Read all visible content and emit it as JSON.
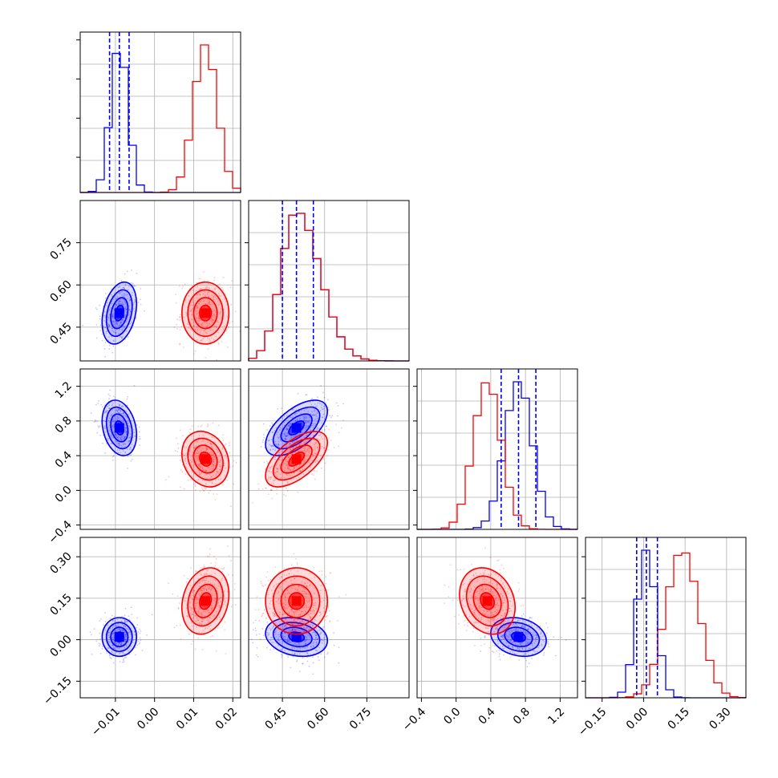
{
  "chart_data": {
    "type": "scatter",
    "plot_kind": "corner plot (pairwise 2D density contours with 1D marginal histograms)",
    "series": [
      {
        "color": "#0000ff",
        "means": [
          -0.009,
          0.5,
          0.72,
          0.01
        ],
        "stds": [
          0.0022,
          0.055,
          0.16,
          0.035
        ],
        "quantiles_16_50_84": [
          [
            -0.0115,
            -0.009,
            -0.0065
          ],
          [
            0.45,
            0.5,
            0.56
          ],
          [
            0.52,
            0.72,
            0.92
          ],
          [
            -0.025,
            0.01,
            0.05
          ]
        ]
      },
      {
        "color": "#ff0000",
        "means": [
          0.013,
          0.5,
          0.36,
          0.14
        ],
        "stds": [
          0.003,
          0.055,
          0.16,
          0.06
        ]
      }
    ],
    "correlations": {
      "blue": {
        "1-0": 0.3,
        "2-0": -0.25,
        "2-1": 0.6,
        "3-0": 0.0,
        "3-1": -0.2,
        "3-2": -0.2
      },
      "red": {
        "1-0": 0.0,
        "2-0": -0.2,
        "2-1": 0.6,
        "3-0": 0.2,
        "3-1": 0.0,
        "3-2": -0.2
      }
    },
    "axes": [
      {
        "range": [
          -0.019,
          0.022
        ],
        "ticks": [
          -0.01,
          0.0,
          0.01,
          0.02
        ],
        "tick_labels": [
          "−0.01",
          "0.00",
          "0.01",
          "0.02"
        ]
      },
      {
        "range": [
          0.33,
          0.9
        ],
        "ticks": [
          0.45,
          0.6,
          0.75
        ],
        "tick_labels": [
          "0.45",
          "0.60",
          "0.75"
        ]
      },
      {
        "range": [
          -0.45,
          1.4
        ],
        "ticks": [
          -0.4,
          0.0,
          0.4,
          0.8,
          1.2
        ],
        "tick_labels": [
          "−0.4",
          "0.0",
          "0.4",
          "0.8",
          "1.2"
        ]
      },
      {
        "range": [
          -0.21,
          0.37
        ],
        "ticks": [
          -0.15,
          0.0,
          0.15,
          0.3
        ],
        "tick_labels": [
          "−0.15",
          "0.00",
          "0.15",
          "0.30"
        ]
      }
    ],
    "contour_levels_sigma": [
      0.5,
      1.0,
      1.5,
      2.0
    ],
    "grid": true,
    "legend": "none"
  }
}
